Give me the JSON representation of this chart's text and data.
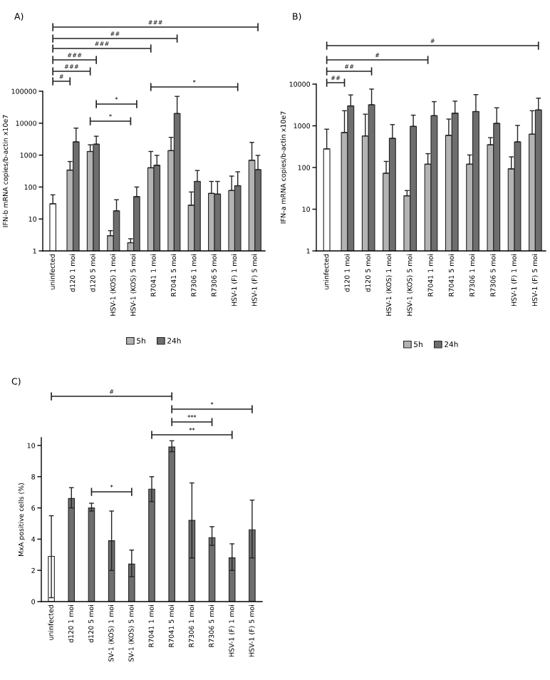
{
  "chart_data": [
    {
      "type": "bar",
      "title": "A)",
      "ylabel": "IFN-b mRNA copies/b-actin x10e7",
      "log": "y",
      "ylim": [
        1,
        100000
      ],
      "yticks": [
        1,
        10,
        100,
        1000,
        10000,
        100000
      ],
      "legend": "bottom",
      "categories": [
        "uninfected",
        "d120 1 moi",
        "d120 5 moi",
        "HSV-1 (KOS) 1 moi",
        "HSV-1 (KOS) 5 moi",
        "R7041 1 moi",
        "R7041 5 moi",
        "R7306 1 moi",
        "R7306 5 moi",
        "HSV-1 (F) 1 moi",
        "HSV-1 (F) 5 moi"
      ],
      "series": [
        {
          "color": "#ffffff",
          "values": [
            30,
            null,
            null,
            null,
            null,
            null,
            null,
            null,
            null,
            null,
            null
          ],
          "errors": [
            [
              30,
              57
            ],
            null,
            null,
            null,
            null,
            null,
            null,
            null,
            null,
            null,
            null
          ]
        },
        {
          "name": "5h",
          "color": "#b3b3b3",
          "values": [
            null,
            340,
            1300,
            3,
            1.8,
            400,
            1380,
            27,
            63,
            78,
            690
          ],
          "errors": [
            null,
            [
              340,
              630
            ],
            [
              1300,
              2100
            ],
            [
              3,
              4.3
            ],
            [
              1.8,
              2.4
            ],
            [
              400,
              1300
            ],
            [
              1380,
              3600
            ],
            [
              27,
              70
            ],
            [
              63,
              150
            ],
            [
              78,
              220
            ],
            [
              690,
              2500
            ]
          ]
        },
        {
          "name": "24h",
          "color": "#6e6e6e",
          "values": [
            null,
            2600,
            2200,
            18,
            50,
            480,
            20000,
            150,
            60,
            110,
            350
          ],
          "errors": [
            null,
            [
              2600,
              7000
            ],
            [
              2200,
              3900
            ],
            [
              18,
              40
            ],
            [
              50,
              100
            ],
            [
              480,
              980
            ],
            [
              20000,
              69000
            ],
            [
              150,
              330
            ],
            [
              60,
              150
            ],
            [
              110,
              300
            ],
            [
              350,
              980
            ]
          ]
        }
      ],
      "annotations": [
        "###",
        "##",
        "###",
        "###",
        "###",
        "#",
        "*",
        "*",
        "*"
      ]
    },
    {
      "type": "bar",
      "title": "B)",
      "ylabel": "IFN-a mRNA copies/b-actin x10e7",
      "log": "y",
      "ylim": [
        1,
        10000
      ],
      "yticks": [
        1,
        10,
        100,
        1000,
        10000
      ],
      "legend": "bottom",
      "categories": [
        "uninfected",
        "d120 1 moi",
        "d120 5 moi",
        "HSV-1 (KOS) 1 moi",
        "HSV-1 (KOS) 5 moi",
        "R7041 1 moi",
        "R7041 5 moi",
        "R7306 1 moi",
        "R7306 5 moi",
        "HSV-1 (F) 1 moi",
        "HSV-1 (F) 5 moi"
      ],
      "series": [
        {
          "color": "#ffffff",
          "values": [
            280,
            null,
            null,
            null,
            null,
            null,
            null,
            null,
            null,
            null,
            null
          ],
          "errors": [
            [
              280,
              830
            ],
            null,
            null,
            null,
            null,
            null,
            null,
            null,
            null,
            null,
            null
          ]
        },
        {
          "name": "5h",
          "color": "#b3b3b3",
          "values": [
            null,
            690,
            570,
            73,
            21,
            120,
            590,
            120,
            350,
            93,
            630
          ],
          "errors": [
            null,
            [
              690,
              2300
            ],
            [
              570,
              1900
            ],
            [
              73,
              140
            ],
            [
              21,
              28
            ],
            [
              120,
              215
            ],
            [
              590,
              1450
            ],
            [
              120,
              200
            ],
            [
              350,
              520
            ],
            [
              93,
              180
            ],
            [
              630,
              2300
            ]
          ]
        },
        {
          "name": "24h",
          "color": "#6e6e6e",
          "values": [
            null,
            3000,
            3200,
            500,
            970,
            1750,
            2000,
            2200,
            1140,
            410,
            2400
          ],
          "errors": [
            null,
            [
              3000,
              5500
            ],
            [
              3200,
              7600
            ],
            [
              500,
              1070
            ],
            [
              970,
              1800
            ],
            [
              1750,
              3800
            ],
            [
              2000,
              3900
            ],
            [
              2200,
              5600
            ],
            [
              1140,
              2700
            ],
            [
              410,
              1020
            ],
            [
              2400,
              4600
            ]
          ]
        }
      ],
      "annotations": [
        "#",
        "#",
        "##",
        "##"
      ]
    },
    {
      "type": "bar",
      "title": "C)",
      "ylabel": "MxA positive cells (%)",
      "ylim": [
        0,
        10.5
      ],
      "yticks": [
        0,
        2,
        4,
        6,
        8,
        10
      ],
      "categories": [
        "uninfected",
        "d120 1 moi",
        "d120 5 moi",
        "SV-1 (KOS) 1 moi",
        "SV-1 (KOS) 5 moi",
        "R7041 1 moi",
        "R7041 5 moi",
        "R7306 1 moi",
        "R7306 5 moi",
        "HSV-1 (F) 1 moi",
        "HSV-1 (F) 5 moi"
      ],
      "series": [
        {
          "color": "#ffffff",
          "values": [
            2.9,
            null,
            null,
            null,
            null,
            null,
            null,
            null,
            null,
            null,
            null
          ],
          "errors": [
            [
              0.25,
              5.5
            ],
            null,
            null,
            null,
            null,
            null,
            null,
            null,
            null,
            null,
            null
          ]
        },
        {
          "color": "#6e6e6e",
          "values": [
            null,
            6.6,
            6.0,
            3.9,
            2.4,
            7.2,
            9.9,
            5.2,
            4.1,
            2.8,
            4.6
          ],
          "errors": [
            null,
            [
              6.0,
              7.3
            ],
            [
              5.8,
              6.3
            ],
            [
              2.0,
              5.8
            ],
            [
              1.6,
              3.3
            ],
            [
              6.4,
              8.0
            ],
            [
              9.6,
              10.3
            ],
            [
              2.8,
              7.6
            ],
            [
              3.6,
              4.8
            ],
            [
              2.0,
              3.7
            ],
            [
              2.8,
              6.5
            ]
          ]
        }
      ],
      "annotations": [
        "#",
        "*",
        "***",
        "**",
        "*"
      ]
    }
  ]
}
